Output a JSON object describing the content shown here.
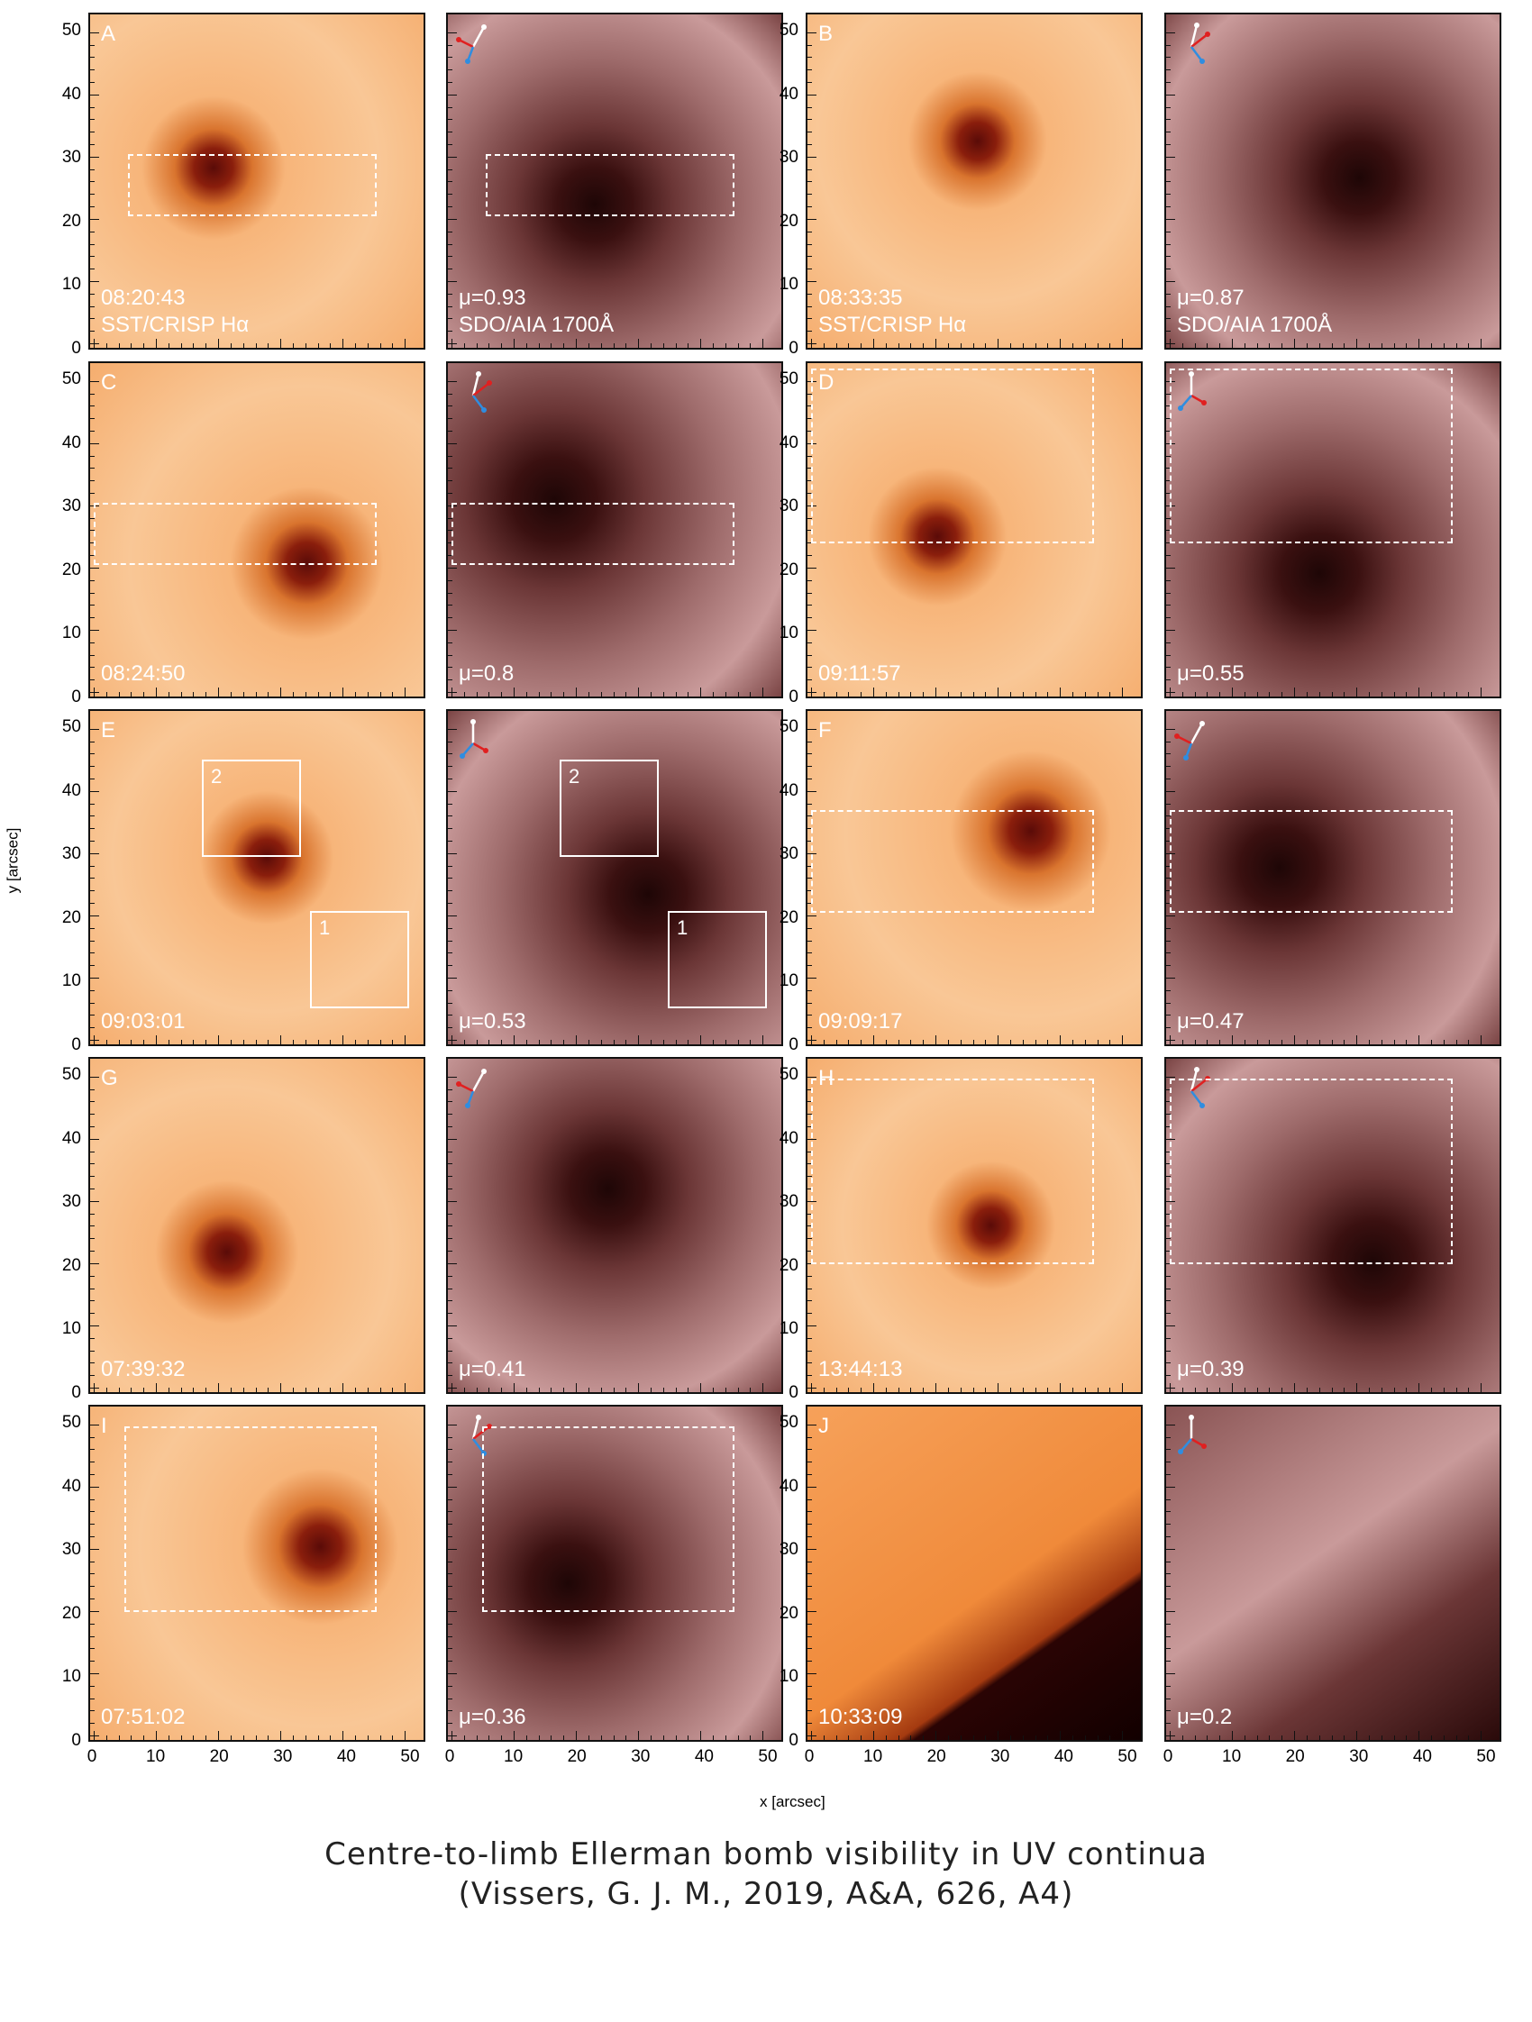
{
  "figure": {
    "axes": {
      "ylabel": "y [arcsec]",
      "xlabel": "x [arcsec]",
      "ticks": [
        "0",
        "10",
        "20",
        "30",
        "40",
        "50"
      ]
    },
    "rows": [
      {
        "left": {
          "label": "A",
          "time": "08:20:43",
          "instrument": "SST/CRISP Hα",
          "mu": "μ=0.93",
          "aia": "SDO/AIA 1700Å"
        },
        "right": {
          "label": "B",
          "time": "08:33:35",
          "instrument": "SST/CRISP Hα",
          "mu": "μ=0.87",
          "aia": "SDO/AIA 1700Å"
        }
      },
      {
        "left": {
          "label": "C",
          "time": "08:24:50",
          "mu": "μ=0.8"
        },
        "right": {
          "label": "D",
          "time": "09:11:57",
          "mu": "μ=0.55"
        }
      },
      {
        "left": {
          "label": "E",
          "time": "09:03:01",
          "mu": "μ=0.53",
          "boxes": [
            "1",
            "2"
          ]
        },
        "right": {
          "label": "F",
          "time": "09:09:17",
          "mu": "μ=0.47"
        }
      },
      {
        "left": {
          "label": "G",
          "time": "07:39:32",
          "mu": "μ=0.41"
        },
        "right": {
          "label": "H",
          "time": "13:44:13",
          "mu": "μ=0.39"
        }
      },
      {
        "left": {
          "label": "I",
          "time": "07:51:02",
          "mu": "μ=0.36"
        },
        "right": {
          "label": "J",
          "time": "10:33:09",
          "mu": "μ=0.2"
        }
      }
    ],
    "colors": {
      "halpha_light": "#f7b57a",
      "halpha_dark": "#5a0b08",
      "aia_light": "#c99a9a",
      "aia_dark": "#3a1010",
      "arrow_white": "#ffffff",
      "arrow_red": "#e02020",
      "arrow_blue": "#2f8de0"
    }
  },
  "caption": {
    "line1": "Centre-to-limb Ellerman bomb visibility in UV continua",
    "line2": "(Vissers, G. J. M., 2019, A&A, 626, A4)"
  }
}
